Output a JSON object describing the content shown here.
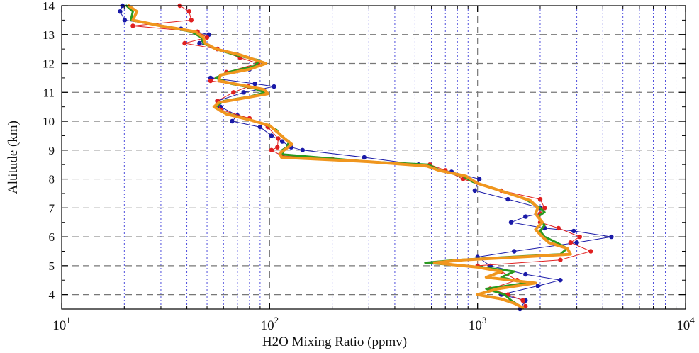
{
  "chart_data": {
    "type": "line",
    "xlabel": "H2O Mixing Ratio (ppmv)",
    "ylabel": "Altitude (km)",
    "xscale": "log",
    "xlim": [
      10,
      10000
    ],
    "ylim": [
      3.5,
      14
    ],
    "x_ticks": [
      {
        "value": 10,
        "base": "10",
        "exp": "1"
      },
      {
        "value": 100,
        "base": "10",
        "exp": "2"
      },
      {
        "value": 1000,
        "base": "10",
        "exp": "3"
      },
      {
        "value": 10000,
        "base": "10",
        "exp": "4"
      }
    ],
    "y_ticks": [
      {
        "value": 4,
        "label": "4"
      },
      {
        "value": 5,
        "label": "5"
      },
      {
        "value": 6,
        "label": "6"
      },
      {
        "value": 7,
        "label": "7"
      },
      {
        "value": 8,
        "label": "8"
      },
      {
        "value": 9,
        "label": "9"
      },
      {
        "value": 10,
        "label": "10"
      },
      {
        "value": 11,
        "label": "11"
      },
      {
        "value": 12,
        "label": "12"
      },
      {
        "value": 13,
        "label": "13"
      },
      {
        "value": 14,
        "label": "14"
      }
    ],
    "grid": true,
    "legend": "none",
    "series": [
      {
        "color": "#1a1aa8",
        "line_width": 1,
        "markers": "dots",
        "points": [
          [
            19.6,
            14.0
          ],
          [
            19.1,
            13.8
          ],
          [
            20.1,
            13.5
          ],
          [
            37.5,
            13.2
          ],
          [
            51.0,
            13.0
          ],
          [
            46.0,
            12.7
          ],
          [
            56.0,
            12.5
          ],
          [
            70.0,
            12.3
          ],
          [
            93.0,
            12.0
          ],
          [
            80.0,
            11.8
          ],
          [
            52.0,
            11.5
          ],
          [
            85.0,
            11.3
          ],
          [
            105.0,
            11.2
          ],
          [
            75.0,
            11.0
          ],
          [
            56.0,
            10.7
          ],
          [
            58.0,
            10.5
          ],
          [
            70.0,
            10.2
          ],
          [
            66.0,
            10.0
          ],
          [
            90.0,
            9.8
          ],
          [
            102.0,
            9.5
          ],
          [
            115.0,
            9.3
          ],
          [
            127.0,
            9.1
          ],
          [
            144.0,
            9.0
          ],
          [
            285.0,
            8.75
          ],
          [
            520.0,
            8.5
          ],
          [
            750.0,
            8.25
          ],
          [
            1020.0,
            8.0
          ],
          [
            970.0,
            7.6
          ],
          [
            1400.0,
            7.3
          ],
          [
            2000.0,
            7.0
          ],
          [
            2000.0,
            6.8
          ],
          [
            1700.0,
            6.7
          ],
          [
            1450.0,
            6.5
          ],
          [
            2100.0,
            6.3
          ],
          [
            2900.0,
            6.2
          ],
          [
            4400.0,
            6.0
          ],
          [
            3000.0,
            5.8
          ],
          [
            1500.0,
            5.5
          ],
          [
            1000.0,
            5.3
          ],
          [
            1150.0,
            5.0
          ],
          [
            1700.0,
            4.7
          ],
          [
            2500.0,
            4.5
          ],
          [
            1950.0,
            4.3
          ],
          [
            1300.0,
            4.0
          ],
          [
            1700.0,
            3.8
          ],
          [
            1600.0,
            3.5
          ]
        ]
      },
      {
        "color": "#e02020",
        "line_width": 1,
        "markers": "dots",
        "points": [
          [
            37.0,
            14.0
          ],
          [
            41.0,
            13.8
          ],
          [
            42.0,
            13.5
          ],
          [
            22.0,
            13.3
          ],
          [
            45.0,
            13.1
          ],
          [
            50.0,
            12.9
          ],
          [
            39.0,
            12.7
          ],
          [
            56.0,
            12.5
          ],
          [
            72.0,
            12.2
          ],
          [
            88.0,
            12.0
          ],
          [
            62.0,
            11.7
          ],
          [
            52.0,
            11.4
          ],
          [
            79.0,
            11.2
          ],
          [
            67.0,
            11.0
          ],
          [
            56.0,
            10.7
          ],
          [
            58.0,
            10.4
          ],
          [
            80.0,
            10.1
          ],
          [
            98.0,
            9.8
          ],
          [
            110.0,
            9.4
          ],
          [
            109.0,
            9.1
          ],
          [
            102.0,
            9.0
          ],
          [
            115.0,
            8.8
          ],
          [
            200.0,
            8.7
          ],
          [
            590.0,
            8.5
          ],
          [
            700.0,
            8.3
          ],
          [
            850.0,
            8.0
          ],
          [
            1300.0,
            7.6
          ],
          [
            2000.0,
            7.3
          ],
          [
            2100.0,
            7.0
          ],
          [
            2000.0,
            6.8
          ],
          [
            2000.0,
            6.5
          ],
          [
            2450.0,
            6.3
          ],
          [
            3100.0,
            6.0
          ],
          [
            2800.0,
            5.8
          ],
          [
            3500.0,
            5.5
          ],
          [
            2500.0,
            5.2
          ],
          [
            1000.0,
            5.0
          ],
          [
            1300.0,
            4.8
          ],
          [
            1550.0,
            4.5
          ],
          [
            1150.0,
            4.2
          ],
          [
            1400.0,
            4.0
          ],
          [
            1650.0,
            3.8
          ],
          [
            1700.0,
            3.6
          ]
        ]
      },
      {
        "color": "#2a9a20",
        "line_width": 3,
        "markers": "none",
        "points": [
          [
            20.5,
            14.0
          ],
          [
            22.0,
            13.8
          ],
          [
            21.5,
            13.5
          ],
          [
            30.0,
            13.3
          ],
          [
            42.0,
            13.1
          ],
          [
            47.0,
            12.9
          ],
          [
            48.0,
            12.7
          ],
          [
            55.0,
            12.5
          ],
          [
            68.0,
            12.3
          ],
          [
            90.0,
            12.1
          ],
          [
            84.0,
            11.9
          ],
          [
            63.0,
            11.7
          ],
          [
            55.0,
            11.5
          ],
          [
            65.0,
            11.3
          ],
          [
            83.0,
            11.15
          ],
          [
            95.0,
            11.0
          ],
          [
            80.0,
            10.85
          ],
          [
            60.0,
            10.7
          ],
          [
            55.0,
            10.5
          ],
          [
            60.0,
            10.3
          ],
          [
            76.0,
            10.1
          ],
          [
            95.0,
            9.9
          ],
          [
            108.0,
            9.7
          ],
          [
            113.0,
            9.5
          ],
          [
            124.0,
            9.3
          ],
          [
            121.0,
            9.1
          ],
          [
            115.0,
            9.0
          ],
          [
            116.0,
            8.85
          ],
          [
            300.0,
            8.6
          ],
          [
            580.0,
            8.5
          ],
          [
            660.0,
            8.3
          ],
          [
            850.0,
            8.1
          ],
          [
            950.0,
            7.9
          ],
          [
            1300.0,
            7.6
          ],
          [
            1700.0,
            7.3
          ],
          [
            2000.0,
            7.0
          ],
          [
            2100.0,
            6.85
          ],
          [
            1950.0,
            6.7
          ],
          [
            2100.0,
            6.4
          ],
          [
            2000.0,
            6.2
          ],
          [
            2100.0,
            6.0
          ],
          [
            2400.0,
            5.8
          ],
          [
            2700.0,
            5.6
          ],
          [
            2500.0,
            5.4
          ],
          [
            1400.0,
            5.3
          ],
          [
            800.0,
            5.2
          ],
          [
            560.0,
            5.1
          ],
          [
            1050.0,
            4.95
          ],
          [
            1500.0,
            4.8
          ],
          [
            1300.0,
            4.6
          ],
          [
            1700.0,
            4.4
          ],
          [
            1100.0,
            4.2
          ],
          [
            1350.0,
            4.0
          ],
          [
            1450.0,
            3.8
          ],
          [
            1600.0,
            3.6
          ]
        ]
      },
      {
        "color": "#f0961e",
        "line_width": 4,
        "markers": "none",
        "points": [
          [
            21.0,
            14.0
          ],
          [
            23.0,
            13.8
          ],
          [
            22.0,
            13.5
          ],
          [
            30.0,
            13.3
          ],
          [
            44.0,
            13.1
          ],
          [
            48.0,
            12.9
          ],
          [
            49.0,
            12.7
          ],
          [
            55.0,
            12.5
          ],
          [
            72.0,
            12.3
          ],
          [
            96.0,
            12.0
          ],
          [
            80.0,
            11.8
          ],
          [
            58.0,
            11.6
          ],
          [
            57.0,
            11.4
          ],
          [
            73.0,
            11.25
          ],
          [
            94.0,
            11.1
          ],
          [
            98.0,
            10.95
          ],
          [
            75.0,
            10.8
          ],
          [
            57.0,
            10.65
          ],
          [
            54.0,
            10.5
          ],
          [
            62.0,
            10.25
          ],
          [
            80.0,
            10.05
          ],
          [
            100.0,
            9.85
          ],
          [
            110.0,
            9.6
          ],
          [
            118.0,
            9.4
          ],
          [
            128.0,
            9.2
          ],
          [
            120.0,
            9.05
          ],
          [
            112.0,
            8.9
          ],
          [
            114.0,
            8.75
          ],
          [
            300.0,
            8.6
          ],
          [
            570.0,
            8.45
          ],
          [
            650.0,
            8.3
          ],
          [
            880.0,
            8.1
          ],
          [
            1000.0,
            7.85
          ],
          [
            1350.0,
            7.55
          ],
          [
            1800.0,
            7.25
          ],
          [
            1950.0,
            7.0
          ],
          [
            1900.0,
            6.8
          ],
          [
            2050.0,
            6.5
          ],
          [
            1900.0,
            6.25
          ],
          [
            2050.0,
            6.0
          ],
          [
            2200.0,
            5.8
          ],
          [
            2700.0,
            5.6
          ],
          [
            2800.0,
            5.4
          ],
          [
            1600.0,
            5.3
          ],
          [
            850.0,
            5.2
          ],
          [
            620.0,
            5.1
          ],
          [
            1000.0,
            4.95
          ],
          [
            1300.0,
            4.8
          ],
          [
            1100.0,
            4.6
          ],
          [
            1900.0,
            4.4
          ],
          [
            1250.0,
            4.2
          ],
          [
            1000.0,
            4.0
          ],
          [
            1300.0,
            3.85
          ],
          [
            1500.0,
            3.7
          ],
          [
            1650.0,
            3.55
          ]
        ]
      }
    ]
  }
}
